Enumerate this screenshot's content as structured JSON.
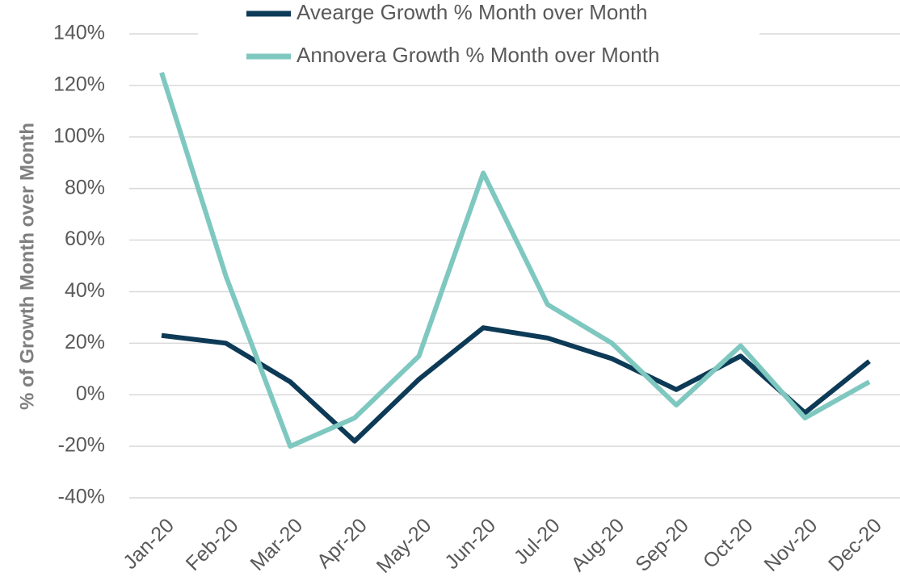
{
  "chart_data": {
    "type": "line",
    "y_label": "% of Growth Month over Month",
    "categories": [
      "Jan-20",
      "Feb-20",
      "Mar-20",
      "Apr-20",
      "May-20",
      "Jun-20",
      "Jul-20",
      "Aug-20",
      "Sep-20",
      "Oct-20",
      "Nov-20",
      "Dec-20"
    ],
    "series": [
      {
        "name": "Avearge Growth % Month over Month",
        "color": "#0d3a56",
        "values": [
          23,
          20,
          5,
          -18,
          6,
          26,
          22,
          14,
          2,
          15,
          -7,
          13
        ]
      },
      {
        "name": "Annovera Growth % Month over Month",
        "color": "#7ec8c0",
        "values": [
          125,
          46,
          -20,
          -9,
          15,
          86,
          35,
          20,
          -4,
          19,
          -9,
          5
        ]
      }
    ],
    "ylim": [
      -40,
      140
    ],
    "yticks": [
      {
        "value": -40,
        "label": "-40%"
      },
      {
        "value": -20,
        "label": "-20%"
      },
      {
        "value": 0,
        "label": "0%"
      },
      {
        "value": 20,
        "label": "20%"
      },
      {
        "value": 40,
        "label": "40%"
      },
      {
        "value": 60,
        "label": "60%"
      },
      {
        "value": 80,
        "label": "80%"
      },
      {
        "value": 100,
        "label": "100%"
      },
      {
        "value": 120,
        "label": "120%"
      },
      {
        "value": 140,
        "label": "140%"
      }
    ],
    "grid": true,
    "legend": "top"
  }
}
